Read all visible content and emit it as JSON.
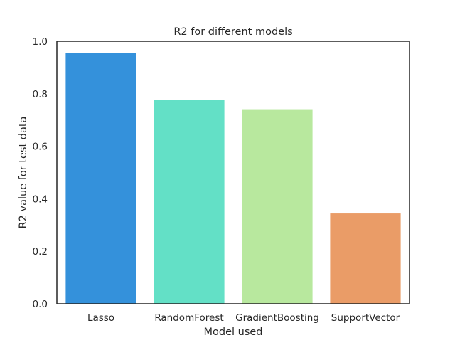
{
  "chart_data": {
    "type": "bar",
    "title": "R2 for different models",
    "xlabel": "Model used",
    "ylabel": "R2 value for test data",
    "categories": [
      "Lasso",
      "RandomForest",
      "GradientBoosting",
      "SupportVector"
    ],
    "values": [
      0.955,
      0.776,
      0.741,
      0.344
    ],
    "colors": [
      "#3491db",
      "#63e0c6",
      "#b8e89e",
      "#ea9c67"
    ],
    "ylim": [
      0,
      1.0
    ],
    "yticks": [
      0.0,
      0.2,
      0.4,
      0.6,
      0.8,
      1.0
    ],
    "ytick_labels": [
      "0.0",
      "0.2",
      "0.4",
      "0.6",
      "0.8",
      "1.0"
    ],
    "grid": false,
    "legend": "none"
  }
}
